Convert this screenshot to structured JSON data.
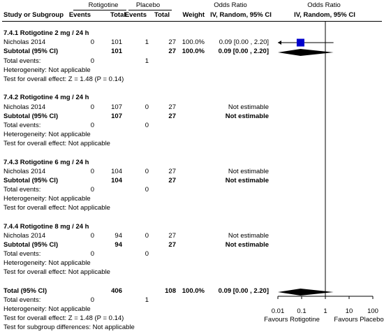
{
  "header": {
    "group1": "Rotigotine",
    "group2": "Placebo",
    "or_table": "Odds Ratio",
    "or_plot": "Odds Ratio",
    "study": "Study or Subgroup",
    "events1": "Events",
    "total1": "Total",
    "events2": "Events",
    "total2": "Total",
    "weight": "Weight",
    "method_table": "IV, Random, 95% CI",
    "method_plot": "IV, Random, 95% CI"
  },
  "subgroups": [
    {
      "title": "7.4.1 Rotigotine 2 mg / 24 h",
      "study": {
        "name": "Nicholas 2014",
        "e1": "0",
        "t1": "101",
        "e2": "1",
        "t2": "27",
        "weight": "100.0%",
        "ci": "0.09 [0.00 , 2.20]"
      },
      "subtotal": {
        "label": "Subtotal (95% CI)",
        "t1": "101",
        "t2": "27",
        "weight": "100.0%",
        "ci": "0.09 [0.00 , 2.20]"
      },
      "total_events": {
        "label": "Total events:",
        "e1": "0",
        "e2": "1"
      },
      "heterogeneity": "Heterogeneity: Not applicable",
      "overall": "Test for overall effect: Z = 1.48 (P = 0.14)"
    },
    {
      "title": "7.4.2 Rotigotine 4 mg / 24 h",
      "study": {
        "name": "Nicholas 2014",
        "e1": "0",
        "t1": "107",
        "e2": "0",
        "t2": "27",
        "weight": "",
        "ci": "Not estimable"
      },
      "subtotal": {
        "label": "Subtotal (95% CI)",
        "t1": "107",
        "t2": "27",
        "weight": "",
        "ci": "Not estimable"
      },
      "total_events": {
        "label": "Total events:",
        "e1": "0",
        "e2": "0"
      },
      "heterogeneity": "Heterogeneity: Not applicable",
      "overall": "Test for overall effect: Not applicable"
    },
    {
      "title": "7.4.3 Rotigotine 6 mg / 24 h",
      "study": {
        "name": "Nicholas 2014",
        "e1": "0",
        "t1": "104",
        "e2": "0",
        "t2": "27",
        "weight": "",
        "ci": "Not estimable"
      },
      "subtotal": {
        "label": "Subtotal (95% CI)",
        "t1": "104",
        "t2": "27",
        "weight": "",
        "ci": "Not estimable"
      },
      "total_events": {
        "label": "Total events:",
        "e1": "0",
        "e2": "0"
      },
      "heterogeneity": "Heterogeneity: Not applicable",
      "overall": "Test for overall effect: Not applicable"
    },
    {
      "title": "7.4.4 Rotigotine 8 mg / 24 h",
      "study": {
        "name": "Nicholas 2014",
        "e1": "0",
        "t1": "94",
        "e2": "0",
        "t2": "27",
        "weight": "",
        "ci": "Not estimable"
      },
      "subtotal": {
        "label": "Subtotal (95% CI)",
        "t1": "94",
        "t2": "27",
        "weight": "",
        "ci": "Not estimable"
      },
      "total_events": {
        "label": "Total events:",
        "e1": "0",
        "e2": "0"
      },
      "heterogeneity": "Heterogeneity: Not applicable",
      "overall": "Test for overall effect: Not applicable"
    }
  ],
  "total": {
    "label": "Total (95% CI)",
    "t1": "406",
    "t2": "108",
    "weight": "100.0%",
    "ci": "0.09 [0.00 , 2.20]",
    "events_label": "Total events:",
    "e1": "0",
    "e2": "1",
    "heterogeneity": "Heterogeneity: Not applicable",
    "overall": "Test for overall effect: Z = 1.48 (P = 0.14)",
    "subgroup_diff": "Test for subgroup differences: Not applicable"
  },
  "axis": {
    "ticks": [
      "0.01",
      "0.1",
      "1",
      "10",
      "100"
    ],
    "favours_left": "Favours Rotigotine",
    "favours_right": "Favours Placebo"
  },
  "colors": {
    "study_marker": "#0000cc",
    "diamond": "#000000",
    "line": "#000000"
  },
  "chart_data": {
    "type": "forest",
    "scale": "log",
    "xlim": [
      0.01,
      100
    ],
    "reference_line": 1,
    "studies": [
      {
        "subgroup": "7.4.1 Rotigotine 2 mg / 24 h",
        "name": "Nicholas 2014",
        "or": 0.09,
        "ci_low": 0.0,
        "ci_high": 2.2,
        "weight": 100.0,
        "ci_low_truncated": true
      }
    ],
    "pooled": [
      {
        "label": "Subtotal (95% CI)",
        "subgroup": "7.4.1 Rotigotine 2 mg / 24 h",
        "or": 0.09,
        "ci_low": 0.0,
        "ci_high": 2.2
      },
      {
        "label": "Total (95% CI)",
        "or": 0.09,
        "ci_low": 0.0,
        "ci_high": 2.2
      }
    ]
  }
}
